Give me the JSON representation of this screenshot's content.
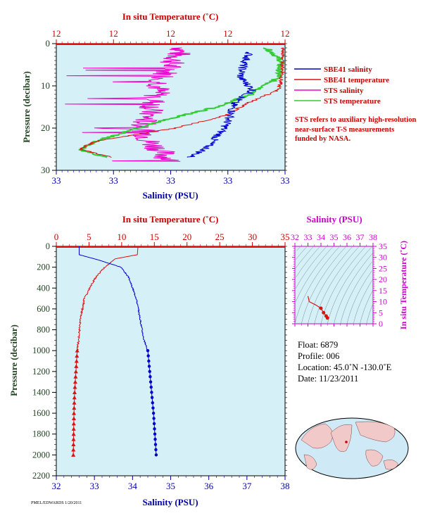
{
  "colors": {
    "plot_bg": "#d6f0f8",
    "sbe_salinity": "#0000cc",
    "sbe_temperature": "#dd1111",
    "sts_salinity": "#ee00cc",
    "sts_temperature": "#33cc33",
    "red_axis": "#cc0000",
    "blue_axis": "#0000aa",
    "green_axis": "#224422",
    "magenta_axis": "#cc00cc"
  },
  "top_chart": {
    "title_temp": "In situ Temperature (˚C)",
    "xlabel_sal": "Salinity (PSU)",
    "ylabel": "Pressure (decibar)",
    "temp_ticks": [
      "12",
      "12",
      "12",
      "12",
      "12"
    ],
    "sal_ticks": [
      "33",
      "33",
      "33",
      "33",
      "33"
    ],
    "y_ticks": [
      "0",
      "10",
      "20",
      "30"
    ]
  },
  "legend": {
    "items": [
      {
        "label": "SBE41 salinity",
        "color_key": "sbe_salinity"
      },
      {
        "label": "SBE41 temperature",
        "color_key": "sbe_temperature"
      },
      {
        "label": "STS salinity",
        "color_key": "sts_salinity"
      },
      {
        "label": "STS temperature",
        "color_key": "sts_temperature"
      }
    ],
    "note": "STS refers to auxiliary high-resolution near-surface T-S measurements funded by NASA."
  },
  "bottom_chart": {
    "title_temp": "In situ Temperature (˚C)",
    "xlabel_sal": "Salinity (PSU)",
    "ylabel": "Pressure (decibar)",
    "temp_ticks": [
      "0",
      "5",
      "10",
      "15",
      "20",
      "25",
      "30",
      "35"
    ],
    "sal_ticks": [
      "32",
      "33",
      "34",
      "35",
      "36",
      "37",
      "38"
    ],
    "y_ticks": [
      "0",
      "200",
      "400",
      "600",
      "800",
      "1000",
      "1200",
      "1400",
      "1600",
      "1800",
      "2000",
      "2200"
    ]
  },
  "ts_diagram": {
    "title": "Salinity (PSU)",
    "ylabel": "In situ Temperature (˚C)",
    "sal_ticks": [
      "32",
      "33",
      "34",
      "35",
      "36",
      "37",
      "38"
    ],
    "temp_ticks": [
      "35",
      "30",
      "25",
      "20",
      "15",
      "10",
      "5",
      "0"
    ]
  },
  "float_info": {
    "float_label": "Float:",
    "float_value": "6879",
    "profile_label": "Profile:",
    "profile_value": "006",
    "location_label": "Location:",
    "location_value": "45.0˚N  -130.0˚E",
    "date_label": "Date:",
    "date_value": "11/23/2011"
  },
  "footer_text": "PMEL/EDWARDS 1/20/2011",
  "chart_data": [
    {
      "type": "line",
      "name": "top",
      "ylim": [
        0,
        30
      ],
      "series": [
        {
          "name": "SBE41 salinity",
          "x": [
            33.78,
            33.74,
            33.72,
            33.8,
            33.68,
            33.66,
            33.62,
            33.55,
            33.5,
            33.4
          ],
          "y": [
            2,
            5,
            8,
            11,
            14,
            17,
            20,
            23,
            25,
            27
          ]
        },
        {
          "name": "SBE41 temperature",
          "x": [
            0.99,
            0.99,
            0.99,
            0.97,
            0.84,
            0.74,
            0.52,
            0.18,
            0.1,
            0.25
          ],
          "y": [
            1,
            4,
            7,
            11,
            14,
            17,
            20,
            23,
            25,
            27
          ]
        },
        {
          "name": "STS salinity",
          "x": [
            0.55,
            0.5,
            0.45,
            0.42,
            0.38,
            0.4,
            0.45,
            0.5
          ],
          "y": [
            1,
            5,
            10,
            15,
            19,
            23,
            25,
            28
          ]
        },
        {
          "name": "STS temperature",
          "x": [
            0.92,
            0.98,
            0.97,
            0.85,
            0.7,
            0.48,
            0.18,
            0.1,
            0.22
          ],
          "y": [
            1,
            4,
            8,
            12,
            15,
            18,
            23,
            25,
            27
          ]
        }
      ]
    },
    {
      "type": "line",
      "name": "bottom",
      "xlim_temp": [
        0,
        35
      ],
      "xlim_sal": [
        32,
        38
      ],
      "ylim": [
        0,
        2200
      ],
      "series": [
        {
          "name": "SBE41 temperature",
          "x": [
            12.5,
            12.4,
            9.0,
            7.4,
            6.0,
            5.1,
            4.3,
            3.7,
            3.4,
            3.2,
            3.0,
            2.8,
            2.7,
            2.6
          ],
          "y": [
            0,
            80,
            120,
            200,
            300,
            400,
            500,
            700,
            900,
            1000,
            1200,
            1400,
            1600,
            2000
          ]
        },
        {
          "name": "SBE41 salinity",
          "x": [
            32.6,
            32.6,
            33.1,
            33.7,
            33.9,
            34.0,
            34.1,
            34.2,
            34.3,
            34.4,
            34.45,
            34.5,
            34.55,
            34.62
          ],
          "y": [
            0,
            80,
            130,
            200,
            300,
            400,
            500,
            700,
            900,
            1000,
            1200,
            1400,
            1600,
            2000
          ]
        }
      ]
    },
    {
      "type": "scatter",
      "name": "ts",
      "xlim": [
        32,
        38
      ],
      "ylim": [
        0,
        35
      ],
      "series": [
        {
          "name": "T-S",
          "x": [
            33.0,
            33.1,
            33.6,
            34.0,
            34.2,
            34.4,
            34.5
          ],
          "y": [
            12.5,
            10.0,
            8.5,
            7.0,
            5.0,
            3.5,
            2.6
          ]
        }
      ]
    }
  ]
}
